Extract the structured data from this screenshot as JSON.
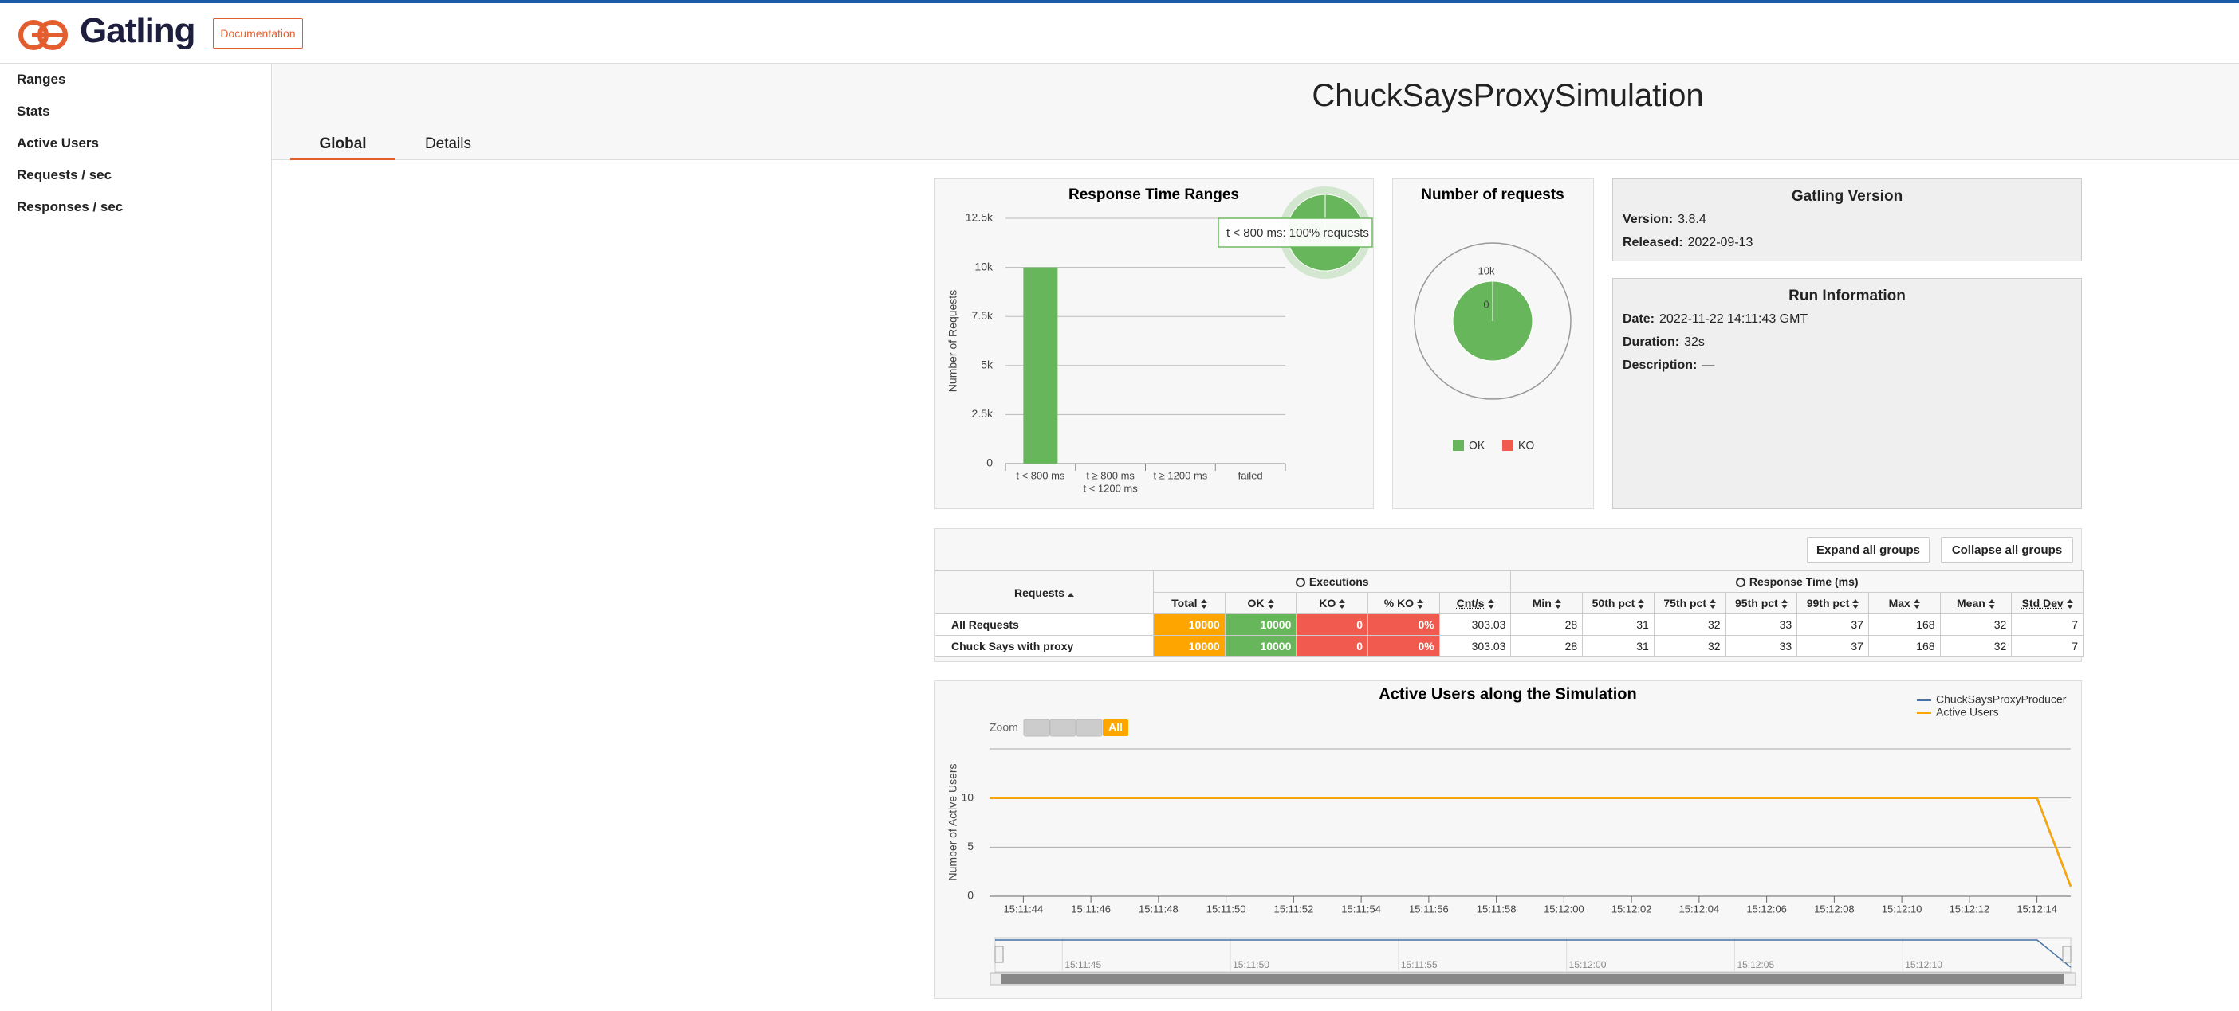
{
  "header": {
    "logo": "Gatling",
    "documentation": "Documentation"
  },
  "sidebar": [
    "Ranges",
    "Stats",
    "Active Users",
    "Requests / sec",
    "Responses / sec"
  ],
  "title": "ChuckSaysProxySimulation",
  "tabs": [
    "Global",
    "Details"
  ],
  "chart_data": [
    {
      "type": "bar",
      "title": "Response Time Ranges",
      "y_label": "Number of Requests",
      "categories": [
        [
          "t < 800 ms"
        ],
        [
          "t ≥ 800 ms",
          "t < 1200 ms"
        ],
        [
          "t ≥ 1200 ms"
        ],
        [
          "failed"
        ]
      ],
      "values": [
        10000,
        0,
        0,
        0
      ],
      "color": "#68b65c",
      "ylim": [
        0,
        12500
      ],
      "yticks": [
        0,
        {
          "value": 2500,
          "label": "2.5k"
        },
        {
          "value": 5000,
          "label": "5k"
        },
        {
          "value": 7500,
          "label": "7.5k"
        },
        {
          "value": 10000,
          "label": "10k"
        },
        {
          "value": 12500,
          "label": "12.5k"
        }
      ],
      "grid": true,
      "tooltip": "t < 800 ms: 100% requests"
    },
    {
      "type": "pie",
      "title": "Number of requests",
      "categories": [
        "OK",
        "KO"
      ],
      "values": [
        10000,
        0
      ],
      "value_labels": [
        "10k",
        "0"
      ],
      "colors": [
        "#68b65c",
        "#f15b4f"
      ]
    },
    {
      "type": "line",
      "title": "Active Users along the Simulation",
      "y_label": "Number of Active Users",
      "zoom_label": "Zoom",
      "zoom_buttons": [
        "All"
      ],
      "x": [
        "15:11:43",
        "15:12:14",
        "15:12:15"
      ],
      "series": [
        {
          "name": "ChuckSaysProxyProducer",
          "color": "#4572a7",
          "values": [
            10,
            10,
            1
          ]
        },
        {
          "name": "Active Users",
          "color": "#ffa500",
          "values": [
            10,
            10,
            1
          ]
        }
      ],
      "xlim": [
        "15:11:43",
        "15:12:15"
      ],
      "xticks": [
        "15:11:44",
        "15:11:46",
        "15:11:48",
        "15:11:50",
        "15:11:52",
        "15:11:54",
        "15:11:56",
        "15:11:58",
        "15:12:00",
        "15:12:02",
        "15:12:04",
        "15:12:06",
        "15:12:08",
        "15:12:10",
        "15:12:12",
        "15:12:14"
      ],
      "ylim": [
        0,
        15
      ],
      "yticks": [
        0,
        5,
        10
      ],
      "grid": true,
      "navigator_xticks": [
        "15:11:45",
        "15:11:50",
        "15:11:55",
        "15:12:00",
        "15:12:05",
        "15:12:10"
      ]
    }
  ],
  "version": {
    "title": "Gatling Version",
    "fields": [
      {
        "label": "Version:",
        "value": "3.8.4"
      },
      {
        "label": "Released:",
        "value": "2022-09-13"
      }
    ]
  },
  "run_info": {
    "title": "Run Information",
    "fields": [
      {
        "label": "Date:",
        "value": "2022-11-22 14:11:43 GMT"
      },
      {
        "label": "Duration:",
        "value": "32s"
      },
      {
        "label": "Description:",
        "value": "—"
      }
    ]
  },
  "table": {
    "buttons": [
      "Expand all groups",
      "Collapse all groups"
    ],
    "requests_header": "Requests",
    "groups": [
      "Executions",
      "Response Time (ms)"
    ],
    "columns": [
      "Total",
      "OK",
      "KO",
      "% KO",
      "Cnt/s",
      "Min",
      "50th pct",
      "75th pct",
      "95th pct",
      "99th pct",
      "Max",
      "Mean",
      "Std Dev"
    ],
    "rows": [
      [
        "All Requests",
        "10000",
        "10000",
        "0",
        "0%",
        "303.03",
        "28",
        "31",
        "32",
        "33",
        "37",
        "168",
        "32",
        "7"
      ],
      [
        "Chuck Says with proxy",
        "10000",
        "10000",
        "0",
        "0%",
        "303.03",
        "28",
        "31",
        "32",
        "33",
        "37",
        "168",
        "32",
        "7"
      ]
    ]
  }
}
